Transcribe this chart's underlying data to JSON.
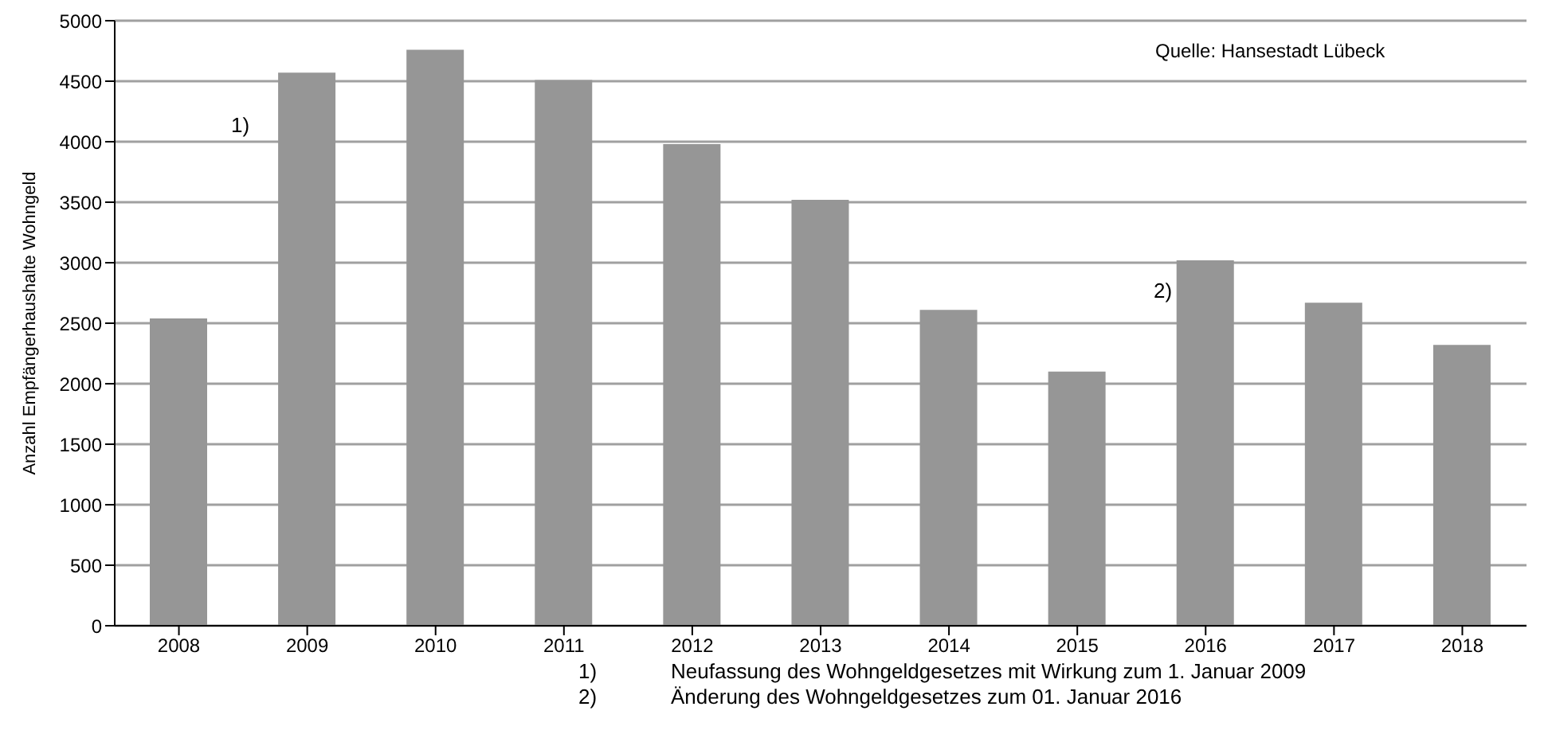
{
  "chart_data": {
    "type": "bar",
    "ylabel": "Anzahl Empfängerhaushalte Wohngeld",
    "categories": [
      "2008",
      "2009",
      "2010",
      "2011",
      "2012",
      "2013",
      "2014",
      "2015",
      "2016",
      "2017",
      "2018"
    ],
    "values": [
      2540,
      4570,
      4760,
      4510,
      3980,
      3520,
      2610,
      2100,
      3020,
      2670,
      2320
    ],
    "color": "#969696",
    "ylim": [
      0,
      5000
    ],
    "yticks": [
      0,
      500,
      1000,
      1500,
      2000,
      2500,
      3000,
      3500,
      4000,
      4500,
      5000
    ],
    "grid": "y",
    "legend": false,
    "annotations": [
      "1)",
      "2)",
      "Quelle: Hansestadt Lübeck",
      "1)\tNeufassung des Wohngeldgesetzes mit Wirkung zum 1. Januar 2009",
      "2)\tÄnderung des Wohngeldgesetzes zum 01. Januar 2016"
    ]
  }
}
